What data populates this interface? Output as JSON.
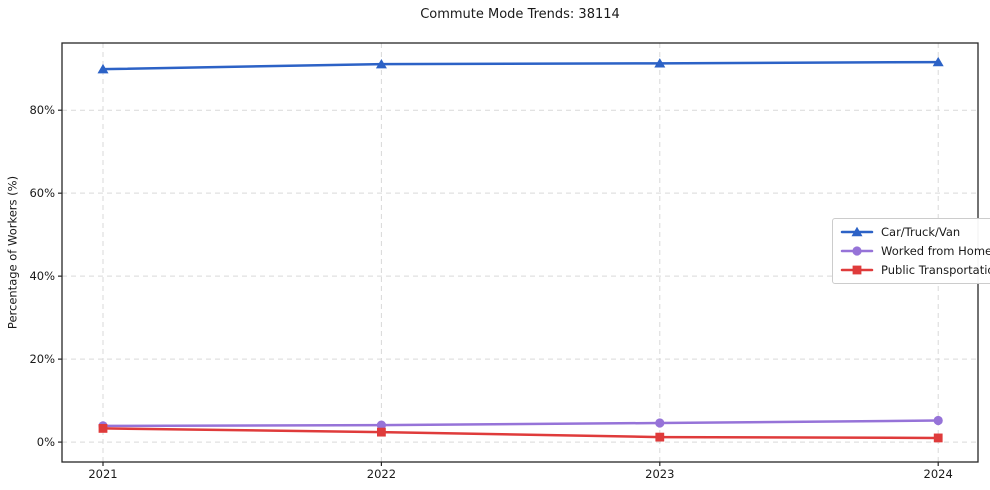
{
  "figure": {
    "background": "#ffffff",
    "axis_color": "#262626",
    "grid_color": "#d9d9d9",
    "text_color": "#1a1a1a",
    "legend_border_color": "#cccccc"
  },
  "chart_data": {
    "type": "line",
    "title": "Commute Mode Trends: 38114",
    "xlabel": "",
    "ylabel": "Percentage of Workers (%)",
    "x": [
      2021,
      2022,
      2023,
      2024
    ],
    "x_tick_labels": [
      "2021",
      "2022",
      "2023",
      "2024"
    ],
    "series": [
      {
        "name": "Car/Truck/Van",
        "values": [
          89.9,
          91.1,
          91.3,
          91.6
        ],
        "color": "#2c62c6",
        "marker": "triangle"
      },
      {
        "name": "Worked from Home",
        "values": [
          3.9,
          4.1,
          4.6,
          5.2
        ],
        "color": "#9673d8",
        "marker": "circle"
      },
      {
        "name": "Public Transportation",
        "values": [
          3.3,
          2.4,
          1.2,
          1.0
        ],
        "color": "#df3b3b",
        "marker": "square"
      }
    ],
    "ylim": [
      -4.8,
      96.2
    ],
    "yticks": [
      0,
      20,
      40,
      60,
      80
    ],
    "ytick_suffix": "%",
    "grid": "dashed-both-axes",
    "legend": {
      "position": "right-middle",
      "entries": [
        "Car/Truck/Van",
        "Worked from Home",
        "Public Transportation"
      ]
    }
  }
}
